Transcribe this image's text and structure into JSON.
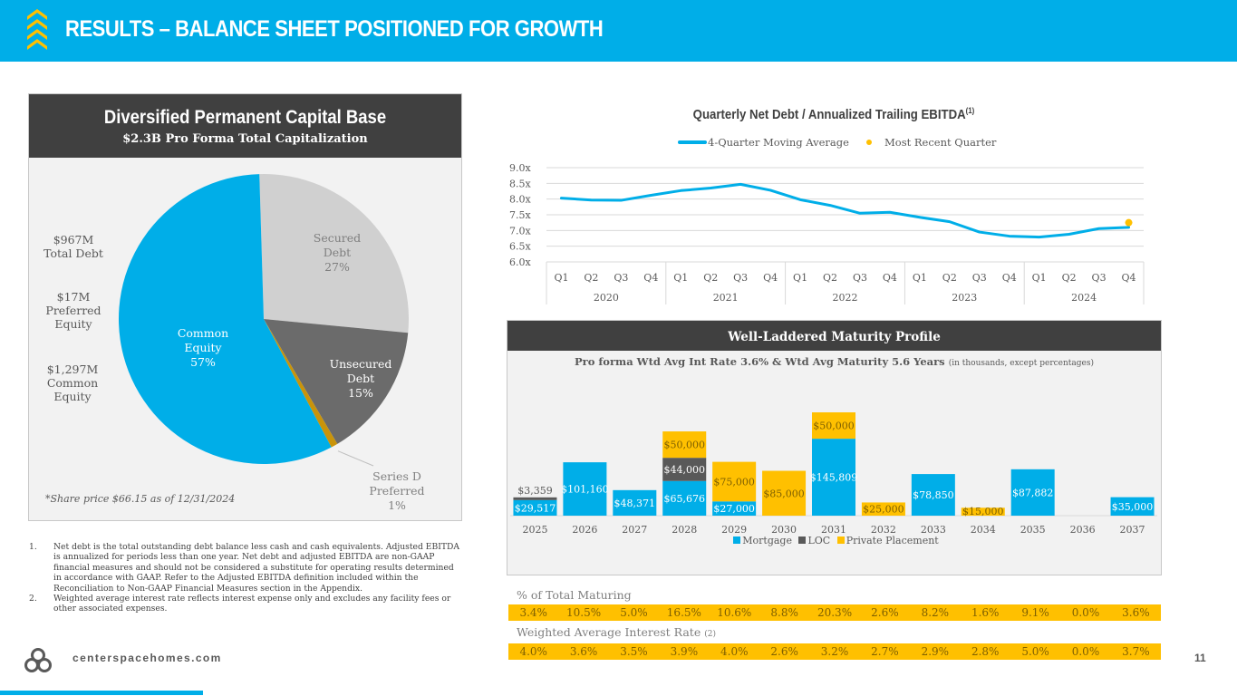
{
  "header": {
    "title": "RESULTS – BALANCE SHEET POSITIONED FOR GROWTH",
    "logo_icon": "chevrons-up-icon"
  },
  "capital_panel": {
    "title": "Diversified Permanent Capital Base",
    "subtitle": "$2.3B Pro Forma Total Capitalization",
    "side_labels": {
      "total_debt": [
        "$967M",
        "Total Debt"
      ],
      "preferred_equity": [
        "$17M",
        "Preferred",
        "Equity"
      ],
      "common_equity": [
        "$1,297M",
        "Common",
        "Equity"
      ]
    },
    "share_note": "*Share price $66.15 as of 12/31/2024"
  },
  "footnotes": [
    {
      "num": "1.",
      "text": "Net debt is the total outstanding debt balance less cash and cash equivalents. Adjusted EBITDA is annualized for periods less than one year. Net debt and adjusted EBITDA are non-GAAP financial measures and should not be considered a substitute for operating results determined in accordance with GAAP. Refer to the Adjusted EBITDA definition included within the Reconciliation to Non-GAAP Financial Measures section in the Appendix."
    },
    {
      "num": "2.",
      "text": "Weighted average interest rate reflects interest expense only and excludes any facility fees or other associated expenses."
    }
  ],
  "maturity_panel": {
    "title": "Well-Laddered Maturity Profile",
    "subtitle": "Pro forma Wtd Avg Int Rate 3.6% & Wtd Avg Maturity 5.6 Years",
    "units_note": "(in thousands, except percentages)",
    "legend": [
      "Mortgage",
      "LOC",
      "Private Placement"
    ]
  },
  "tables": {
    "pct_label": "% of Total Maturing",
    "pct_values": [
      "3.4%",
      "10.5%",
      "5.0%",
      "16.5%",
      "10.6%",
      "8.8%",
      "20.3%",
      "2.6%",
      "8.2%",
      "1.6%",
      "9.1%",
      "0.0%",
      "3.6%"
    ],
    "rate_label": "Weighted Average Interest Rate",
    "rate_note": "(2)",
    "rate_values": [
      "4.0%",
      "3.6%",
      "3.5%",
      "3.9%",
      "4.0%",
      "2.6%",
      "3.2%",
      "2.7%",
      "2.9%",
      "2.8%",
      "5.0%",
      "0.0%",
      "3.7%"
    ]
  },
  "footer": {
    "url": "centerspacehomes.com",
    "page": "11",
    "logo_icon": "centerspace-logo-icon"
  },
  "colors": {
    "brand_blue": "#00aee8",
    "gold": "#ffc000",
    "dark": "#404040",
    "secured_gray": "#d0d0d0",
    "unsecured_gray": "#6b6b6b",
    "preferred_gold": "#c9940a"
  },
  "chart_data": [
    {
      "type": "pie",
      "title": "Diversified Permanent Capital Base",
      "subtitle": "$2.3B Pro Forma Total Capitalization",
      "slices": [
        {
          "label": "Secured Debt",
          "value": 27,
          "display": [
            "Secured",
            "Debt",
            "27%"
          ],
          "color": "#d0d0d0"
        },
        {
          "label": "Unsecured Debt",
          "value": 15,
          "display": [
            "Unsecured",
            "Debt",
            "15%"
          ],
          "color": "#6b6b6b"
        },
        {
          "label": "Series D Preferred",
          "value": 0.75,
          "display": [
            "Series D",
            "Preferred",
            "1%"
          ],
          "color": "#c9940a"
        },
        {
          "label": "Common Equity",
          "value": 57.25,
          "display": [
            "Common",
            "Equity",
            "57%"
          ],
          "color": "#00aee8"
        }
      ]
    },
    {
      "type": "line",
      "title": "Quarterly Net Debt / Annualized Trailing EBITDA",
      "title_sup": "(1)",
      "legend": [
        "4-Quarter Moving Average",
        "Most Recent Quarter"
      ],
      "legend_position": "top",
      "years": [
        "2020",
        "2021",
        "2022",
        "2023",
        "2024"
      ],
      "quarters": [
        "Q1",
        "Q2",
        "Q3",
        "Q4"
      ],
      "yticks": [
        "6.0x",
        "6.5x",
        "7.0x",
        "7.5x",
        "8.0x",
        "8.5x",
        "9.0x"
      ],
      "ylim": [
        6.0,
        9.0
      ],
      "grid": true,
      "series": [
        {
          "name": "4-Quarter Moving Average",
          "values": [
            8.03,
            7.97,
            7.96,
            8.12,
            8.27,
            8.35,
            8.47,
            8.28,
            7.98,
            7.8,
            7.55,
            7.58,
            7.42,
            7.28,
            6.95,
            6.82,
            6.79,
            6.88,
            7.06,
            7.1
          ]
        },
        {
          "name": "Most Recent Quarter",
          "points": [
            {
              "x": "2024 Q4",
              "y": 7.25
            }
          ]
        }
      ]
    },
    {
      "type": "bar",
      "stacked": true,
      "title": "Well-Laddered Maturity Profile",
      "categories": [
        "2025",
        "2026",
        "2027",
        "2028",
        "2029",
        "2030",
        "2031",
        "2032",
        "2033",
        "2034",
        "2035",
        "2036",
        "2037"
      ],
      "series": [
        {
          "name": "Mortgage",
          "color": "#00aee8",
          "values": [
            29517,
            101160,
            48371,
            65676,
            27000,
            0,
            145809,
            0,
            78850,
            0,
            87882,
            0,
            35000
          ]
        },
        {
          "name": "LOC",
          "color": "#595959",
          "values": [
            3359,
            0,
            0,
            44000,
            0,
            0,
            0,
            0,
            0,
            0,
            0,
            0,
            0
          ]
        },
        {
          "name": "Private Placement",
          "color": "#ffc000",
          "values": [
            0,
            0,
            0,
            50000,
            75000,
            85000,
            50000,
            25000,
            0,
            15000,
            0,
            0,
            0
          ]
        }
      ],
      "data_labels": true,
      "legend_position": "bottom"
    }
  ]
}
